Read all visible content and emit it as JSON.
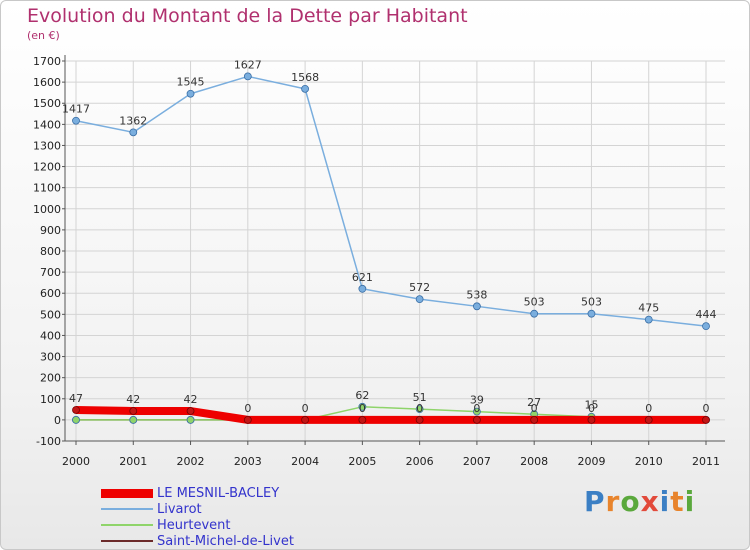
{
  "header": {
    "title": "Evolution du Montant de la Dette par Habitant",
    "subtitle": "(en €)"
  },
  "logo": {
    "text": "Proxiti",
    "colors": [
      "#3b7fc4",
      "#e8842c",
      "#5aa83c",
      "#e24a3b",
      "#3b7fc4",
      "#e8842c",
      "#5aa83c"
    ]
  },
  "chart_data": {
    "type": "line",
    "x": [
      "2000",
      "2001",
      "2002",
      "2003",
      "2004",
      "2005",
      "2006",
      "2007",
      "2008",
      "2009",
      "2010",
      "2011"
    ],
    "ylim": [
      -100,
      1700
    ],
    "yticks": [
      -100,
      0,
      100,
      200,
      300,
      400,
      500,
      600,
      700,
      800,
      900,
      1000,
      1100,
      1200,
      1300,
      1400,
      1500,
      1600,
      1700
    ],
    "grid": true,
    "legend_position": "bottom-left",
    "series": [
      {
        "name": "Saint-Michel-de-Livet",
        "color": "#6b2a2a",
        "values": [
          0,
          0,
          0,
          0,
          0,
          0,
          0,
          0,
          0,
          0,
          0,
          0
        ],
        "labels": [
          "",
          "",
          "",
          "",
          "",
          "",
          "",
          "",
          "",
          "",
          "",
          ""
        ]
      },
      {
        "name": "Heurtevent",
        "color": "#8fd46a",
        "values": [
          0,
          0,
          0,
          0,
          0,
          62,
          51,
          39,
          27,
          15,
          0,
          0
        ],
        "labels": [
          "",
          "",
          "",
          "",
          "",
          "62",
          "51",
          "39",
          "27",
          "15",
          "",
          ""
        ]
      },
      {
        "name": "LE MESNIL-BACLEY",
        "color": "#ee0000",
        "values": [
          47,
          42,
          42,
          0,
          0,
          0,
          0,
          0,
          0,
          0,
          0,
          0
        ],
        "labels": [
          "47",
          "42",
          "42",
          "0",
          "0",
          "0",
          "0",
          "0",
          "0",
          "0",
          "0",
          "0"
        ]
      },
      {
        "name": "Livarot",
        "color": "#7aaede",
        "values": [
          1417,
          1362,
          1545,
          1627,
          1568,
          621,
          572,
          538,
          503,
          503,
          475,
          444
        ],
        "labels": [
          "1417",
          "1362",
          "1545",
          "1627",
          "1568",
          "621",
          "572",
          "538",
          "503",
          "503",
          "475",
          "444"
        ]
      }
    ],
    "legend": [
      {
        "name": "LE MESNIL-BACLEY",
        "color": "#ee0000",
        "thick": true
      },
      {
        "name": "Livarot",
        "color": "#7aaede",
        "thick": false
      },
      {
        "name": "Heurtevent",
        "color": "#8fd46a",
        "thick": false
      },
      {
        "name": "Saint-Michel-de-Livet",
        "color": "#6b2a2a",
        "thick": false
      }
    ]
  }
}
